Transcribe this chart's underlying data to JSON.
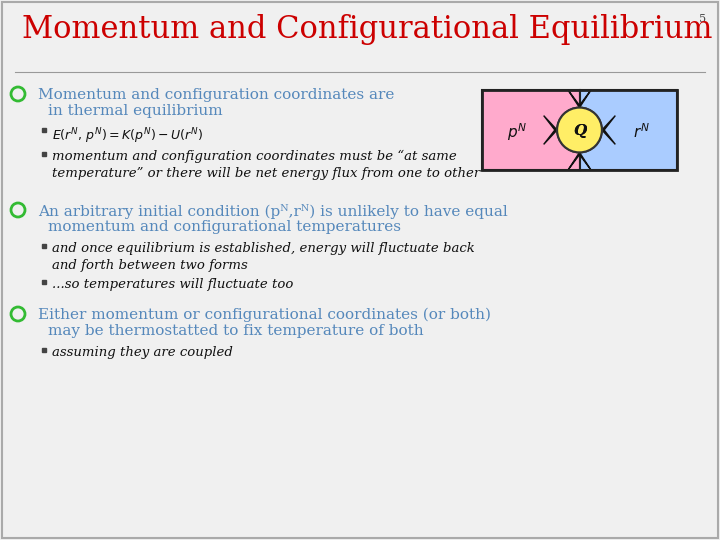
{
  "title": "Momentum and Configurational Equilibrium",
  "title_color": "#cc0000",
  "slide_number": "5",
  "background_color": "#f0f0f0",
  "bullet_color": "#5588bb",
  "bullet_marker_color": "#33bb33",
  "bullets": [
    {
      "text": "Momentum and configuration coordinates are\n    in thermal equilibrium",
      "color": "#5588bb"
    },
    {
      "text": "An arbitrary initial condition (pᴺ,rᴺ) is unlikely to have equal\n    momentum and configurational temperatures",
      "color": "#5588bb"
    },
    {
      "text": "Either momentum or configurational coordinates (or both)\n    may be thermostatted to fix temperature of both",
      "color": "#5588bb"
    }
  ],
  "diag_pink": "#ffaacc",
  "diag_blue": "#aaccff",
  "diag_yellow": "#ffee66",
  "title_fontsize": 22,
  "bullet_fontsize": 11,
  "sub_fontsize": 9.5
}
